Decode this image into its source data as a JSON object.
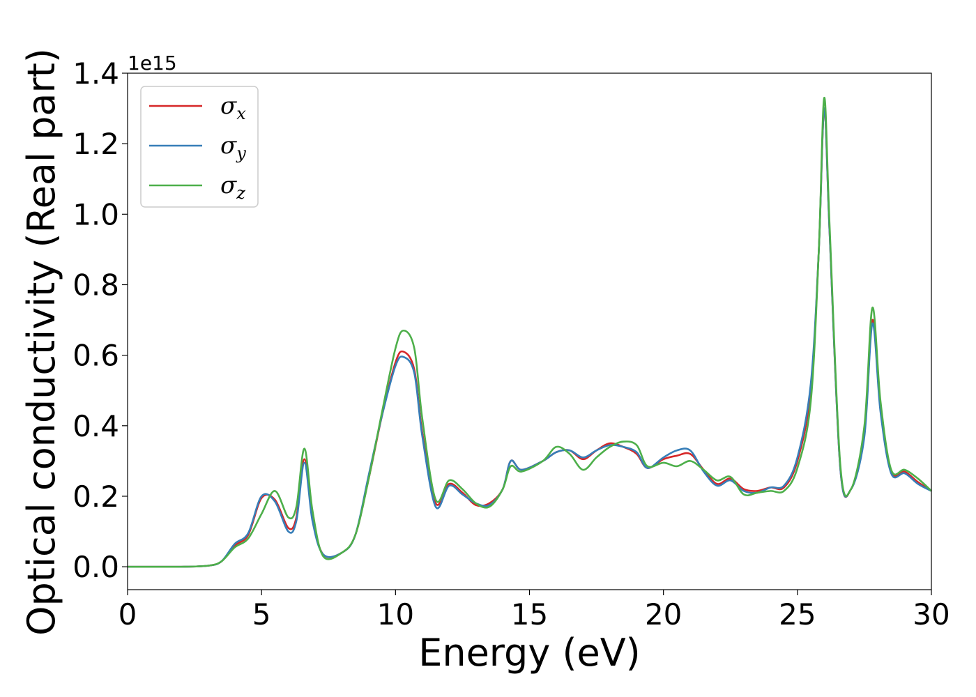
{
  "chart_data": {
    "type": "line",
    "title": "",
    "xlabel": "Energy (eV)",
    "ylabel": "Optical conductivity (Real part)",
    "y_offset_label": "1e15",
    "xlim": [
      0,
      30
    ],
    "ylim": [
      -0.065,
      1.4
    ],
    "xticks": [
      "0",
      "5",
      "10",
      "15",
      "20",
      "25",
      "30"
    ],
    "yticks": [
      "0.0",
      "0.2",
      "0.4",
      "0.6",
      "0.8",
      "1.0",
      "1.2",
      "1.4"
    ],
    "grid": false,
    "legend_position": "top-left",
    "series": [
      {
        "name": "σx",
        "symbol": "σ",
        "subscript": "x",
        "color": "#d62728",
        "points": [
          [
            0,
            0
          ],
          [
            2,
            0
          ],
          [
            3,
            0.003
          ],
          [
            3.5,
            0.015
          ],
          [
            4,
            0.06
          ],
          [
            4.5,
            0.09
          ],
          [
            5,
            0.195
          ],
          [
            5.5,
            0.19
          ],
          [
            6,
            0.11
          ],
          [
            6.3,
            0.14
          ],
          [
            6.6,
            0.305
          ],
          [
            6.9,
            0.14
          ],
          [
            7.3,
            0.035
          ],
          [
            8,
            0.04
          ],
          [
            8.5,
            0.09
          ],
          [
            9,
            0.25
          ],
          [
            9.5,
            0.43
          ],
          [
            10,
            0.58
          ],
          [
            10.3,
            0.61
          ],
          [
            10.7,
            0.56
          ],
          [
            11,
            0.38
          ],
          [
            11.5,
            0.18
          ],
          [
            12,
            0.235
          ],
          [
            12.5,
            0.21
          ],
          [
            13,
            0.175
          ],
          [
            13.5,
            0.18
          ],
          [
            14,
            0.22
          ],
          [
            14.3,
            0.3
          ],
          [
            14.7,
            0.275
          ],
          [
            15.5,
            0.3
          ],
          [
            16,
            0.325
          ],
          [
            16.5,
            0.33
          ],
          [
            17,
            0.305
          ],
          [
            17.5,
            0.33
          ],
          [
            18,
            0.35
          ],
          [
            18.5,
            0.34
          ],
          [
            19,
            0.32
          ],
          [
            19.4,
            0.28
          ],
          [
            20,
            0.305
          ],
          [
            20.5,
            0.315
          ],
          [
            21,
            0.32
          ],
          [
            21.5,
            0.275
          ],
          [
            22,
            0.235
          ],
          [
            22.5,
            0.25
          ],
          [
            23,
            0.22
          ],
          [
            23.5,
            0.215
          ],
          [
            24,
            0.225
          ],
          [
            24.5,
            0.225
          ],
          [
            25,
            0.3
          ],
          [
            25.5,
            0.5
          ],
          [
            25.8,
            0.9
          ],
          [
            26,
            1.3
          ],
          [
            26.2,
            0.95
          ],
          [
            26.6,
            0.28
          ],
          [
            27,
            0.22
          ],
          [
            27.5,
            0.38
          ],
          [
            27.8,
            0.7
          ],
          [
            28.1,
            0.45
          ],
          [
            28.5,
            0.27
          ],
          [
            29,
            0.27
          ],
          [
            29.5,
            0.24
          ],
          [
            30,
            0.215
          ]
        ]
      },
      {
        "name": "σy",
        "symbol": "σ",
        "subscript": "y",
        "color": "#377eb8",
        "points": [
          [
            0,
            0
          ],
          [
            2,
            0
          ],
          [
            3,
            0.003
          ],
          [
            3.5,
            0.015
          ],
          [
            4,
            0.065
          ],
          [
            4.5,
            0.095
          ],
          [
            5,
            0.2
          ],
          [
            5.5,
            0.185
          ],
          [
            6,
            0.1
          ],
          [
            6.3,
            0.13
          ],
          [
            6.6,
            0.295
          ],
          [
            6.9,
            0.13
          ],
          [
            7.3,
            0.035
          ],
          [
            8,
            0.04
          ],
          [
            8.5,
            0.09
          ],
          [
            9,
            0.26
          ],
          [
            9.5,
            0.43
          ],
          [
            10,
            0.57
          ],
          [
            10.3,
            0.595
          ],
          [
            10.7,
            0.55
          ],
          [
            11,
            0.37
          ],
          [
            11.5,
            0.17
          ],
          [
            12,
            0.23
          ],
          [
            12.5,
            0.205
          ],
          [
            13,
            0.18
          ],
          [
            13.5,
            0.175
          ],
          [
            14,
            0.22
          ],
          [
            14.3,
            0.3
          ],
          [
            14.7,
            0.275
          ],
          [
            15.5,
            0.3
          ],
          [
            16,
            0.325
          ],
          [
            16.5,
            0.33
          ],
          [
            17,
            0.31
          ],
          [
            17.5,
            0.33
          ],
          [
            18,
            0.345
          ],
          [
            18.5,
            0.34
          ],
          [
            19,
            0.325
          ],
          [
            19.4,
            0.28
          ],
          [
            20,
            0.31
          ],
          [
            20.5,
            0.33
          ],
          [
            21,
            0.33
          ],
          [
            21.5,
            0.27
          ],
          [
            22,
            0.23
          ],
          [
            22.5,
            0.245
          ],
          [
            23,
            0.215
          ],
          [
            23.5,
            0.21
          ],
          [
            24,
            0.225
          ],
          [
            24.5,
            0.23
          ],
          [
            25,
            0.31
          ],
          [
            25.5,
            0.52
          ],
          [
            25.8,
            0.9
          ],
          [
            26,
            1.3
          ],
          [
            26.2,
            0.95
          ],
          [
            26.6,
            0.28
          ],
          [
            27,
            0.22
          ],
          [
            27.5,
            0.37
          ],
          [
            27.8,
            0.69
          ],
          [
            28.1,
            0.44
          ],
          [
            28.5,
            0.265
          ],
          [
            29,
            0.265
          ],
          [
            29.5,
            0.235
          ],
          [
            30,
            0.215
          ]
        ]
      },
      {
        "name": "σz",
        "symbol": "σ",
        "subscript": "z",
        "color": "#4daf4a",
        "points": [
          [
            0,
            0
          ],
          [
            2,
            0
          ],
          [
            3,
            0.003
          ],
          [
            3.5,
            0.015
          ],
          [
            4,
            0.055
          ],
          [
            4.5,
            0.08
          ],
          [
            5,
            0.15
          ],
          [
            5.5,
            0.215
          ],
          [
            6,
            0.14
          ],
          [
            6.3,
            0.17
          ],
          [
            6.6,
            0.335
          ],
          [
            6.9,
            0.16
          ],
          [
            7.3,
            0.03
          ],
          [
            8,
            0.04
          ],
          [
            8.5,
            0.09
          ],
          [
            9,
            0.25
          ],
          [
            9.5,
            0.44
          ],
          [
            10,
            0.62
          ],
          [
            10.3,
            0.67
          ],
          [
            10.7,
            0.62
          ],
          [
            11,
            0.42
          ],
          [
            11.5,
            0.19
          ],
          [
            12,
            0.245
          ],
          [
            12.5,
            0.22
          ],
          [
            13,
            0.18
          ],
          [
            13.5,
            0.17
          ],
          [
            14,
            0.22
          ],
          [
            14.3,
            0.285
          ],
          [
            14.7,
            0.27
          ],
          [
            15.5,
            0.3
          ],
          [
            16,
            0.34
          ],
          [
            16.5,
            0.32
          ],
          [
            17,
            0.275
          ],
          [
            17.5,
            0.31
          ],
          [
            18,
            0.34
          ],
          [
            18.5,
            0.355
          ],
          [
            19,
            0.345
          ],
          [
            19.4,
            0.285
          ],
          [
            20,
            0.295
          ],
          [
            20.5,
            0.285
          ],
          [
            21,
            0.3
          ],
          [
            21.5,
            0.275
          ],
          [
            22,
            0.245
          ],
          [
            22.5,
            0.255
          ],
          [
            23,
            0.205
          ],
          [
            23.5,
            0.21
          ],
          [
            24,
            0.215
          ],
          [
            24.5,
            0.215
          ],
          [
            25,
            0.28
          ],
          [
            25.5,
            0.47
          ],
          [
            25.8,
            0.9
          ],
          [
            26,
            1.33
          ],
          [
            26.2,
            0.97
          ],
          [
            26.6,
            0.29
          ],
          [
            27,
            0.22
          ],
          [
            27.5,
            0.4
          ],
          [
            27.8,
            0.735
          ],
          [
            28.1,
            0.47
          ],
          [
            28.5,
            0.275
          ],
          [
            29,
            0.275
          ],
          [
            29.5,
            0.25
          ],
          [
            30,
            0.215
          ]
        ]
      }
    ]
  }
}
